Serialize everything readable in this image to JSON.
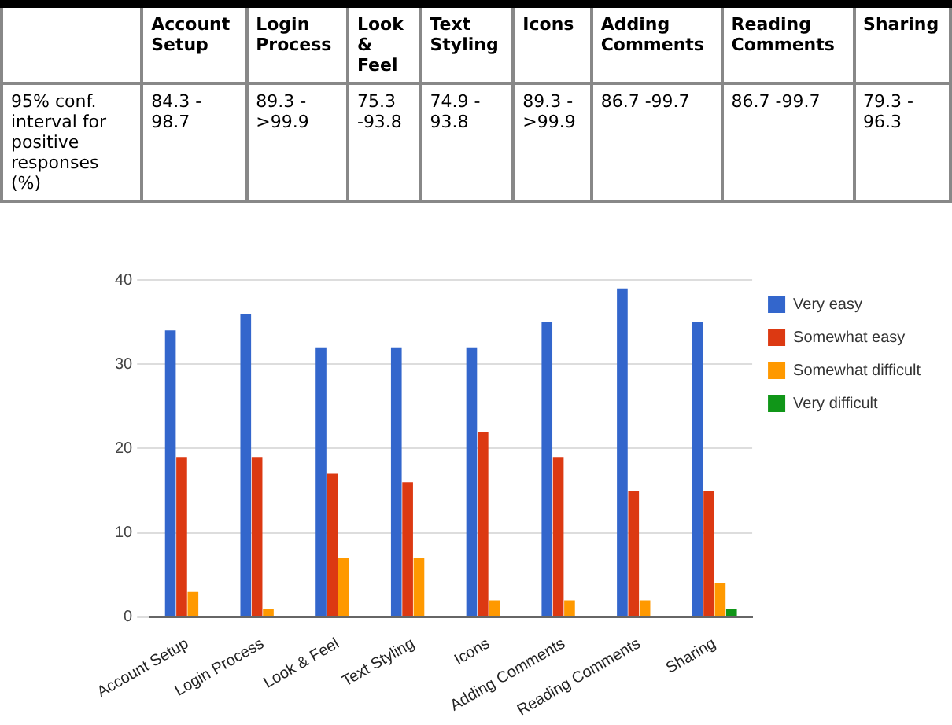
{
  "chart_data": [
    {
      "type": "other",
      "categories": [
        "Account Setup",
        "Login Process",
        "Look & Feel",
        "Text Styling",
        "Icons",
        "Adding Comments",
        "Reading Comments",
        "Sharing"
      ],
      "annotations": [
        "95% conf. interval for positive responses (%)",
        "84.3 - 98.7",
        "89.3 - >99.9",
        "75.3 -93.8",
        "74.9 - 93.8",
        "89.3 - >99.9",
        "86.7 -99.7",
        "86.7 -99.7",
        "79.3 - 96.3"
      ]
    },
    {
      "type": "bar",
      "categories": [
        "Account Setup",
        "Login Process",
        "Look & Feel",
        "Text Styling",
        "Icons",
        "Adding Comments",
        "Reading Comments",
        "Sharing"
      ],
      "series": [
        {
          "name": "Very easy",
          "color": "#3366cc",
          "values": [
            34,
            36,
            32,
            32,
            32,
            35,
            39,
            35
          ]
        },
        {
          "name": "Somewhat easy",
          "color": "#dc3912",
          "values": [
            19,
            19,
            17,
            16,
            22,
            19,
            15,
            15
          ]
        },
        {
          "name": "Somewhat difficult",
          "color": "#ff9900",
          "values": [
            3,
            1,
            7,
            7,
            2,
            2,
            2,
            4
          ]
        },
        {
          "name": "Very difficult",
          "color": "#109618",
          "values": [
            0,
            0,
            0,
            0,
            0,
            0,
            0,
            1
          ]
        }
      ],
      "ylim": [
        0,
        40
      ],
      "yticks": [
        0,
        10,
        20,
        30,
        40
      ],
      "grid": "y",
      "legend": "right"
    }
  ]
}
